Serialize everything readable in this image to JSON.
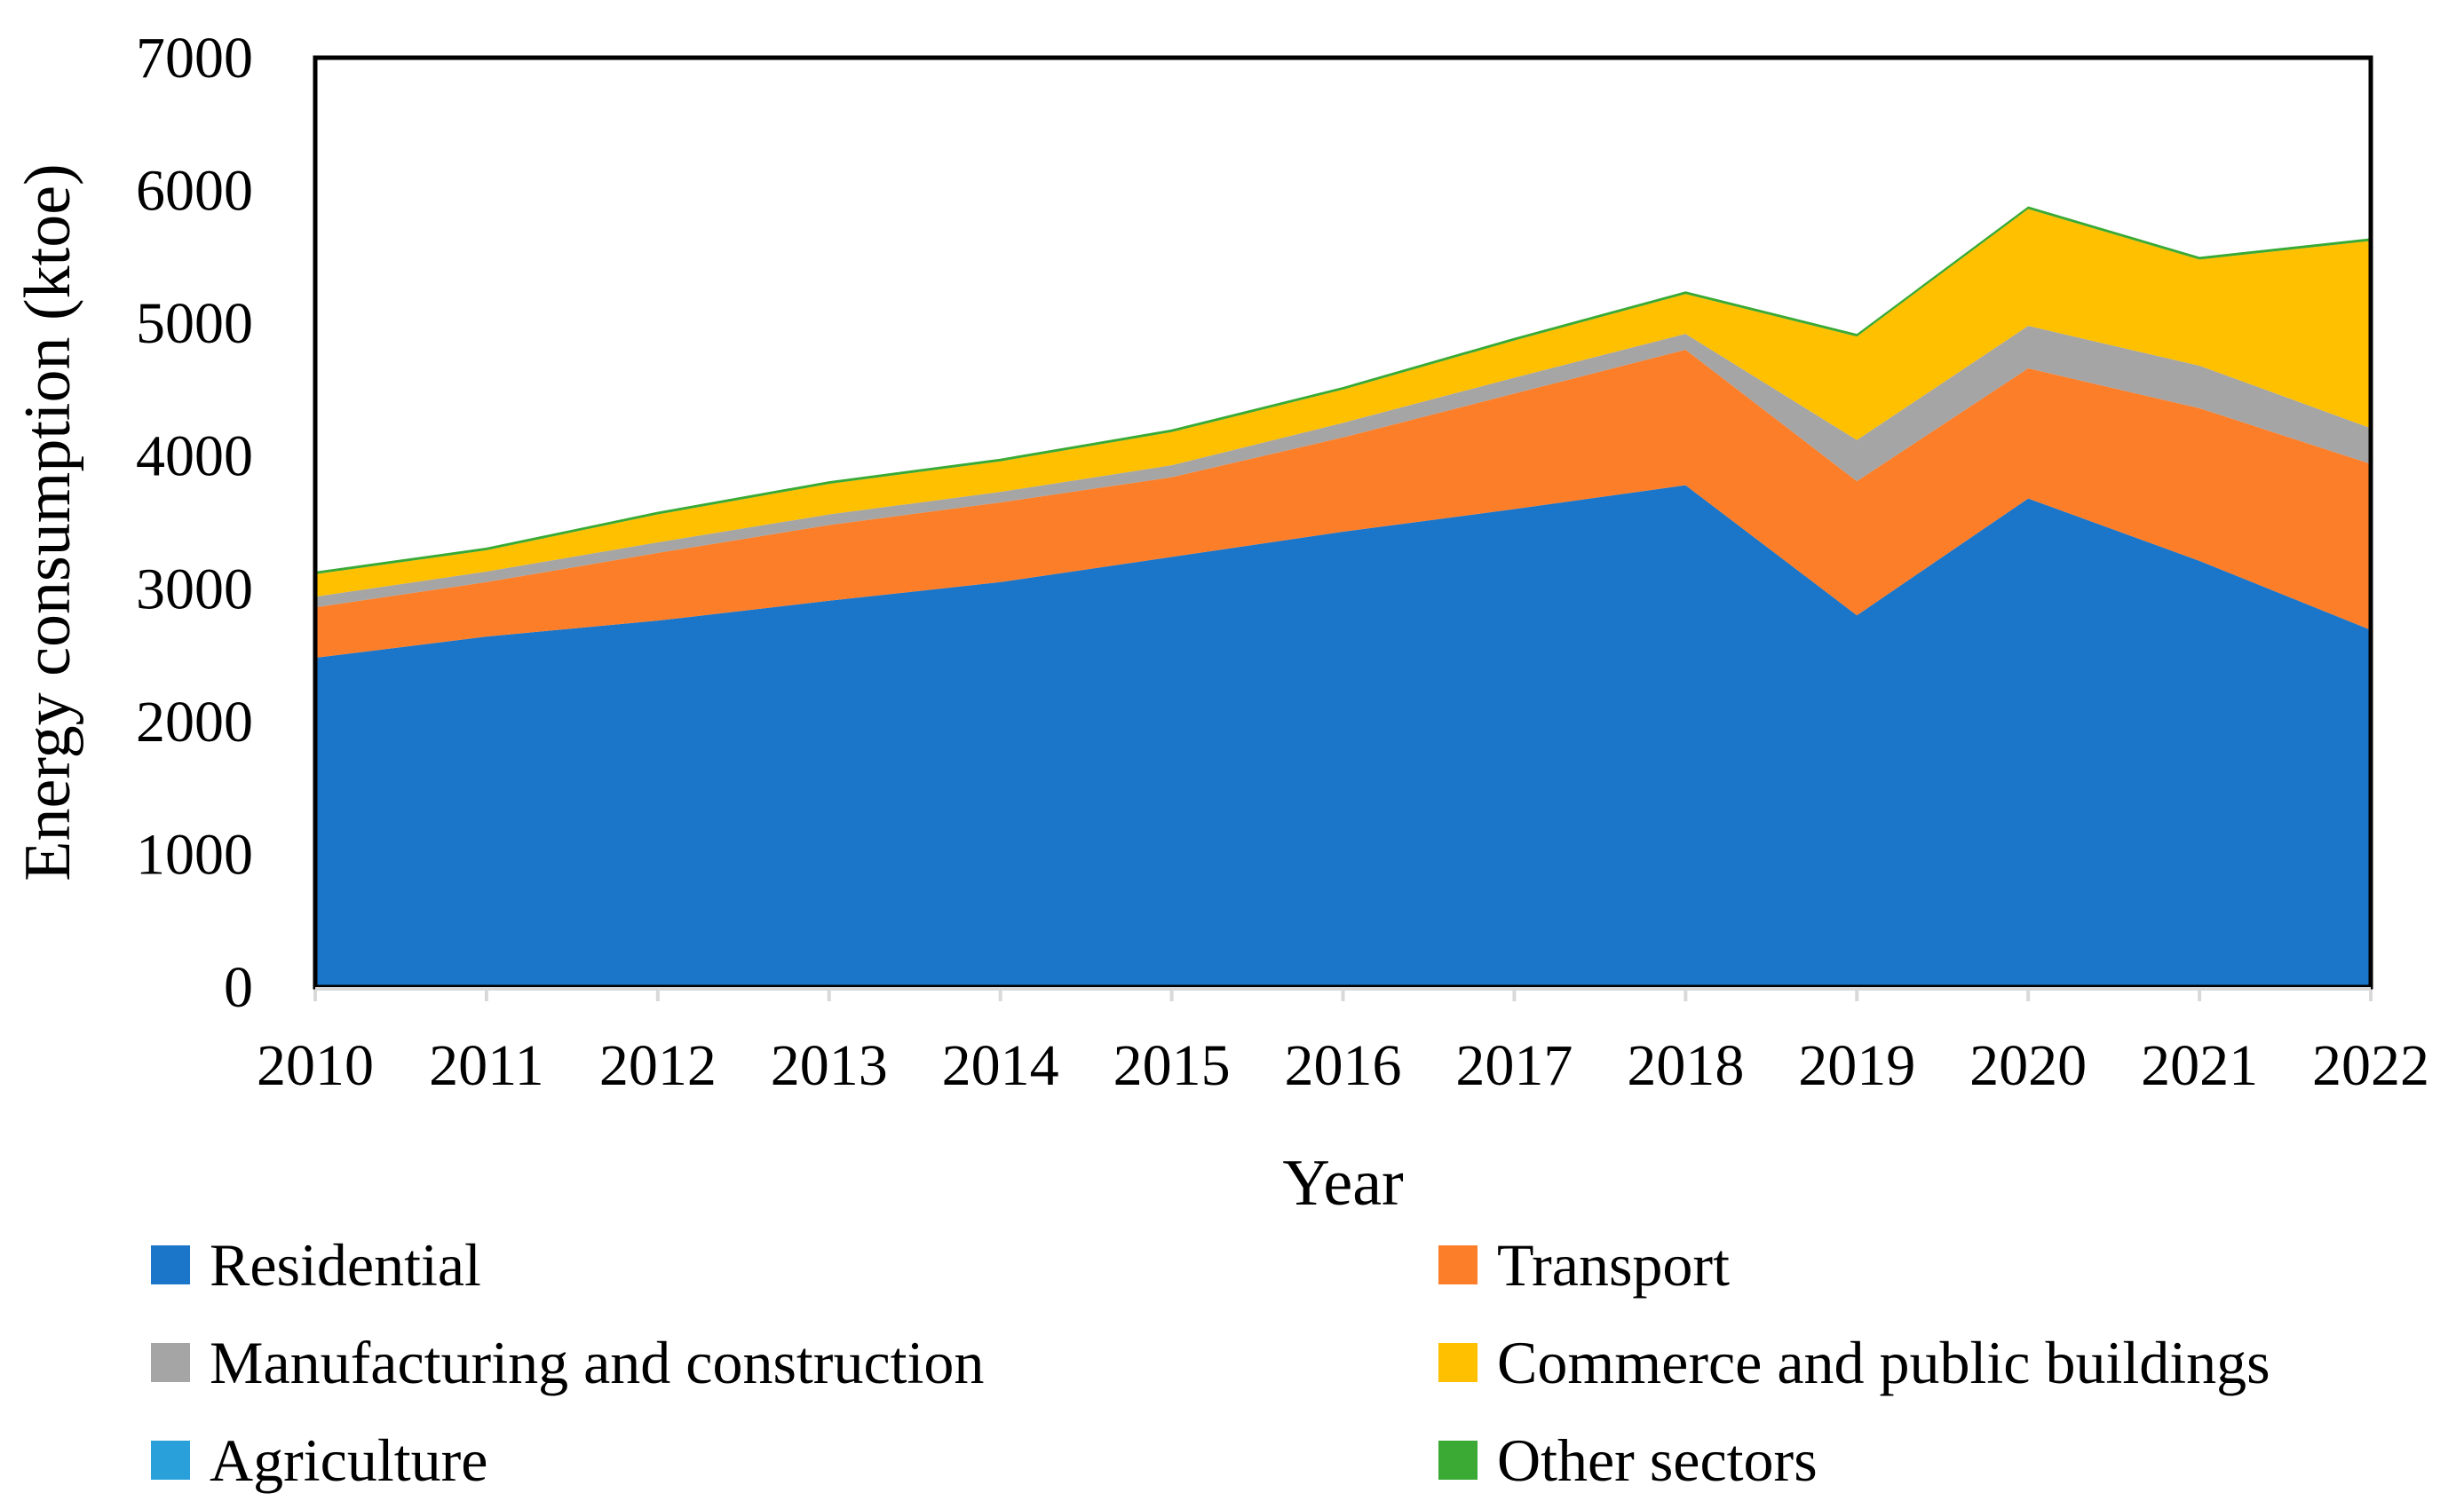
{
  "chart_data": {
    "type": "area",
    "stacked": true,
    "title": "",
    "xlabel": "Year",
    "ylabel": "Energy consumption (ktoe)",
    "ylim": [
      0,
      7000
    ],
    "yticks": [
      0,
      1000,
      2000,
      3000,
      4000,
      5000,
      6000,
      7000
    ],
    "categories": [
      "2010",
      "2011",
      "2012",
      "2013",
      "2014",
      "2015",
      "2016",
      "2017",
      "2018",
      "2019",
      "2020",
      "2021",
      "2022"
    ],
    "series": [
      {
        "name": "Residential",
        "color": "#1b75c9",
        "values": [
          2480,
          2640,
          2760,
          2910,
          3050,
          3240,
          3430,
          3600,
          3780,
          2800,
          3680,
          3210,
          2690
        ]
      },
      {
        "name": "Transport",
        "color": "#fd7e28",
        "values": [
          380,
          410,
          510,
          570,
          600,
          600,
          710,
          870,
          1020,
          1010,
          980,
          1150,
          1250
        ]
      },
      {
        "name": "Manufacturing and construction",
        "color": "#a5a5a5",
        "values": [
          80,
          80,
          80,
          80,
          80,
          90,
          110,
          120,
          120,
          310,
          320,
          320,
          270
        ]
      },
      {
        "name": "Commerce and public buildings",
        "color": "#ffc000",
        "values": [
          170,
          160,
          210,
          230,
          230,
          250,
          250,
          280,
          300,
          780,
          880,
          800,
          1410
        ]
      },
      {
        "name": "Agriculture",
        "color": "#2aa0db",
        "values": [
          0,
          0,
          0,
          0,
          0,
          0,
          0,
          0,
          0,
          0,
          0,
          0,
          0
        ]
      },
      {
        "name": "Other sectors",
        "color": "#3aaa35",
        "values": [
          20,
          20,
          20,
          20,
          20,
          20,
          20,
          20,
          20,
          20,
          20,
          20,
          20
        ]
      }
    ],
    "grid": false,
    "legend_position": "bottom"
  }
}
